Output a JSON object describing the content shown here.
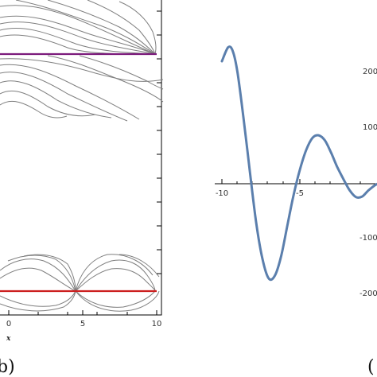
{
  "chart_data": [
    {
      "type": "contour",
      "xlabel": "x",
      "ylabel": "",
      "xlim": [
        -10,
        10
      ],
      "x_ticks": [
        "0",
        "5",
        "10"
      ],
      "panel_label": "b)",
      "horizontal_lines": [
        {
          "color": "#7b1a7b"
        },
        {
          "color": "#cc1f1f"
        }
      ],
      "colors": {
        "contour": "#7f7f7f",
        "frame": "#000000"
      }
    },
    {
      "type": "line",
      "xlabel": "",
      "ylabel": "",
      "xlim": [
        -10.5,
        0
      ],
      "ylim": [
        -2300,
        2700
      ],
      "x_ticks": [
        "-10",
        "-5"
      ],
      "y_ticks": [
        "200",
        "100",
        "-100",
        "-200"
      ],
      "panel_label": "(",
      "series": [
        {
          "color": "#5b7fad",
          "x": [
            -10,
            -9.6,
            -9.3,
            -9.0,
            -8.6,
            -8.2,
            -7.8,
            -7.4,
            -7.0,
            -6.6,
            -6.2,
            -5.8,
            -5.4,
            -5.0,
            -4.6,
            -4.2,
            -3.8,
            -3.4,
            -3.0,
            -2.6,
            -2.2,
            -1.8,
            -1.4,
            -1.0,
            -0.6,
            -0.2,
            0
          ],
          "y": [
            2200,
            2450,
            2380,
            2000,
            1150,
            200,
            -700,
            -1350,
            -1700,
            -1650,
            -1300,
            -750,
            -200,
            250,
            600,
            820,
            870,
            780,
            560,
            300,
            80,
            -120,
            -240,
            -230,
            -120,
            -30,
            0
          ]
        }
      ],
      "colors": {
        "axis": "#000000"
      }
    }
  ]
}
